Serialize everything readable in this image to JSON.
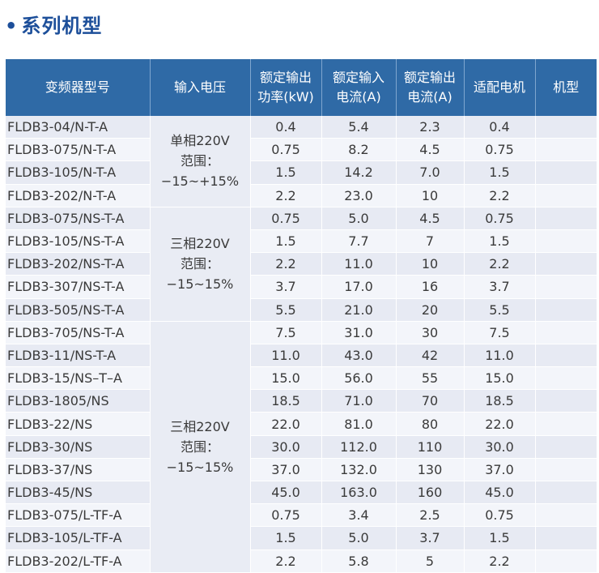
{
  "title": "系列机型",
  "headers": {
    "model": "变频器型号",
    "input_voltage": "输入电压",
    "power": [
      "额定输出",
      "功率(kW)"
    ],
    "in_current": [
      "额定输入",
      "电流(A)"
    ],
    "out_current": [
      "额定输出",
      "电流(A)"
    ],
    "motor": "适配电机",
    "type": "机型"
  },
  "voltage_groups": [
    {
      "lines": [
        "单相220V",
        "范围：",
        "−15~+15%"
      ]
    },
    {
      "lines": [
        "三相220V",
        "范围：",
        "−15~15%"
      ]
    },
    {
      "lines": [
        "三相220V",
        "范围：",
        "−15~15%"
      ]
    }
  ],
  "rows": [
    {
      "model": "FLDB3-04/N-T-A",
      "power": "0.4",
      "in_current": "5.4",
      "out_current": "2.3",
      "motor": "0.4",
      "type": ""
    },
    {
      "model": "FLDB3-075/N-T-A",
      "power": "0.75",
      "in_current": "8.2",
      "out_current": "4.5",
      "motor": "0.75",
      "type": ""
    },
    {
      "model": "FLDB3-105/N-T-A",
      "power": "1.5",
      "in_current": "14.2",
      "out_current": "7.0",
      "motor": "1.5",
      "type": ""
    },
    {
      "model": "FLDB3-202/N-T-A",
      "power": "2.2",
      "in_current": "23.0",
      "out_current": "10",
      "motor": "2.2",
      "type": ""
    },
    {
      "model": "FLDB3-075/NS-T-A",
      "power": "0.75",
      "in_current": "5.0",
      "out_current": "4.5",
      "motor": "0.75",
      "type": ""
    },
    {
      "model": "FLDB3-105/NS-T-A",
      "power": "1.5",
      "in_current": "7.7",
      "out_current": "7",
      "motor": "1.5",
      "type": ""
    },
    {
      "model": "FLDB3-202/NS-T-A",
      "power": "2.2",
      "in_current": "11.0",
      "out_current": "10",
      "motor": "2.2",
      "type": ""
    },
    {
      "model": "FLDB3-307/NS-T-A",
      "power": "3.7",
      "in_current": "17.0",
      "out_current": "16",
      "motor": "3.7",
      "type": ""
    },
    {
      "model": "FLDB3-505/NS-T-A",
      "power": "5.5",
      "in_current": "21.0",
      "out_current": "20",
      "motor": "5.5",
      "type": ""
    },
    {
      "model": "FLDB3-705/NS-T-A",
      "power": "7.5",
      "in_current": "31.0",
      "out_current": "30",
      "motor": "7.5",
      "type": ""
    },
    {
      "model": "FLDB3-11/NS-T-A",
      "power": "11.0",
      "in_current": "43.0",
      "out_current": "42",
      "motor": "11.0",
      "type": ""
    },
    {
      "model": "FLDB3-15/NS–T–A",
      "power": "15.0",
      "in_current": "56.0",
      "out_current": "55",
      "motor": "15.0",
      "type": ""
    },
    {
      "model": "FLDB3-1805/NS",
      "power": "18.5",
      "in_current": "71.0",
      "out_current": "70",
      "motor": "18.5",
      "type": ""
    },
    {
      "model": "FLDB3-22/NS",
      "power": "22.0",
      "in_current": "81.0",
      "out_current": "80",
      "motor": "22.0",
      "type": ""
    },
    {
      "model": "FLDB3-30/NS",
      "power": "30.0",
      "in_current": "112.0",
      "out_current": "110",
      "motor": "30.0",
      "type": ""
    },
    {
      "model": "FLDB3-37/NS",
      "power": "37.0",
      "in_current": "132.0",
      "out_current": "130",
      "motor": "37.0",
      "type": ""
    },
    {
      "model": "FLDB3-45/NS",
      "power": "45.0",
      "in_current": "163.0",
      "out_current": "160",
      "motor": "45.0",
      "type": ""
    },
    {
      "model": "FLDB3-075/L-TF-A",
      "power": "0.75",
      "in_current": "3.4",
      "out_current": "2.5",
      "motor": "0.75",
      "type": ""
    },
    {
      "model": "FLDB3-105/L-TF-A",
      "power": "1.5",
      "in_current": "5.0",
      "out_current": "3.7",
      "motor": "1.5",
      "type": ""
    },
    {
      "model": "FLDB3-202/L-TF-A",
      "power": "2.2",
      "in_current": "5.8",
      "out_current": "5",
      "motor": "2.2",
      "type": ""
    }
  ]
}
